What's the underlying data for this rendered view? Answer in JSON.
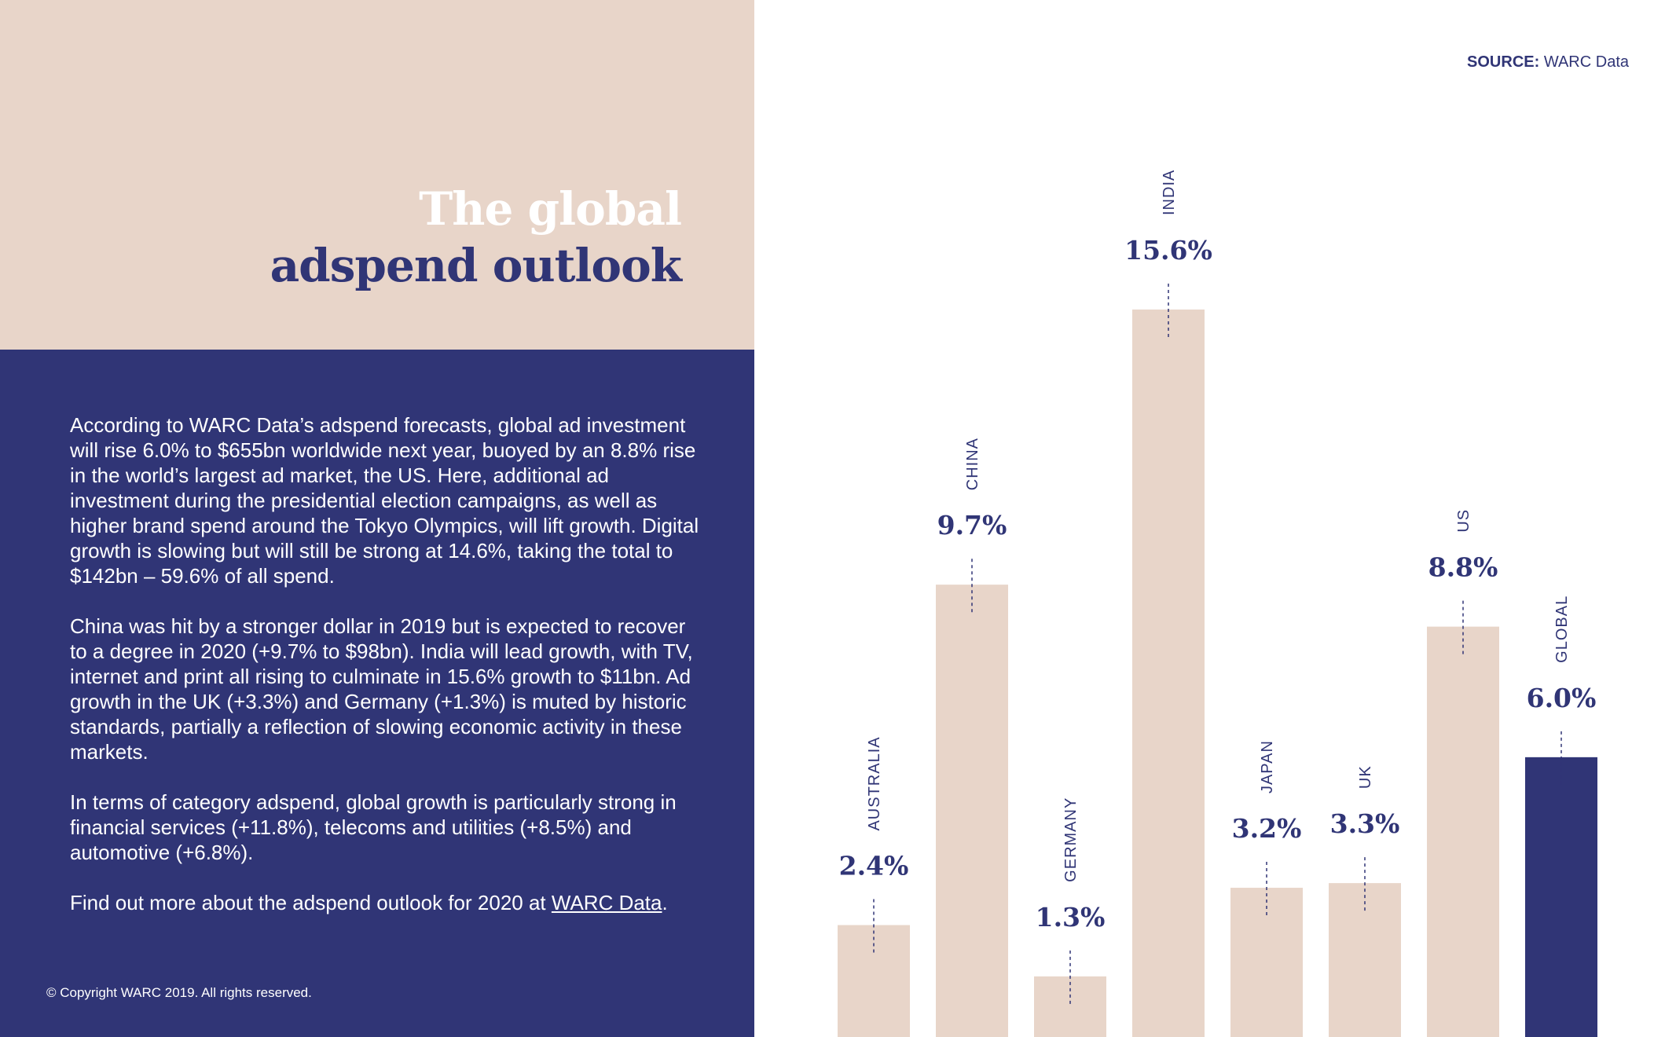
{
  "title": {
    "line1": "The global",
    "line2": "adspend outlook"
  },
  "source": {
    "label": "SOURCE:",
    "value": "WARC Data"
  },
  "paragraphs": [
    "According to WARC Data’s adspend forecasts, global ad investment will rise 6.0% to $655bn worldwide next year, buoyed by an 8.8% rise in the world’s largest ad market, the US. Here, additional ad investment during the presidential election campaigns, as well as higher brand spend around the Tokyo Olympics, will lift growth. Digital growth is slowing but will still be strong at 14.6%, taking the total to $142bn – 59.6% of all spend.",
    "China was hit by a stronger dollar in 2019 but is expected to recover to a degree in 2020 (+9.7% to $98bn). India will lead growth, with TV, internet and print all rising to culminate in 15.6% growth to $11bn. Ad growth in the UK (+3.3%) and Germany (+1.3%) is muted by historic standards, partially a reflection of slowing economic activity in these markets.",
    "In terms of category adspend, global growth is particularly strong in financial services (+11.8%), telecoms and utilities (+8.5%) and automotive (+6.8%)."
  ],
  "find_out": {
    "prefix": "Find out more about the adspend outlook for 2020 at ",
    "link": "WARC Data",
    "suffix": "."
  },
  "copyright": "© Copyright WARC 2019. All rights reserved.",
  "colors": {
    "beige": "#e8d5c9",
    "navy": "#303576",
    "white": "#ffffff"
  },
  "chart_data": {
    "type": "bar",
    "categories": [
      "AUSTRALIA",
      "CHINA",
      "GERMANY",
      "INDIA",
      "JAPAN",
      "UK",
      "US",
      "GLOBAL"
    ],
    "values": [
      2.4,
      9.7,
      1.3,
      15.6,
      3.2,
      3.3,
      8.8,
      6.0
    ],
    "value_labels": [
      "2.4%",
      "9.7%",
      "1.3%",
      "15.6%",
      "3.2%",
      "3.3%",
      "8.8%",
      "6.0%"
    ],
    "highlight": "GLOBAL",
    "highlight_color": "#303576",
    "bar_color": "#e8d5c9",
    "ylim": [
      0,
      15.6
    ],
    "grid": false
  }
}
